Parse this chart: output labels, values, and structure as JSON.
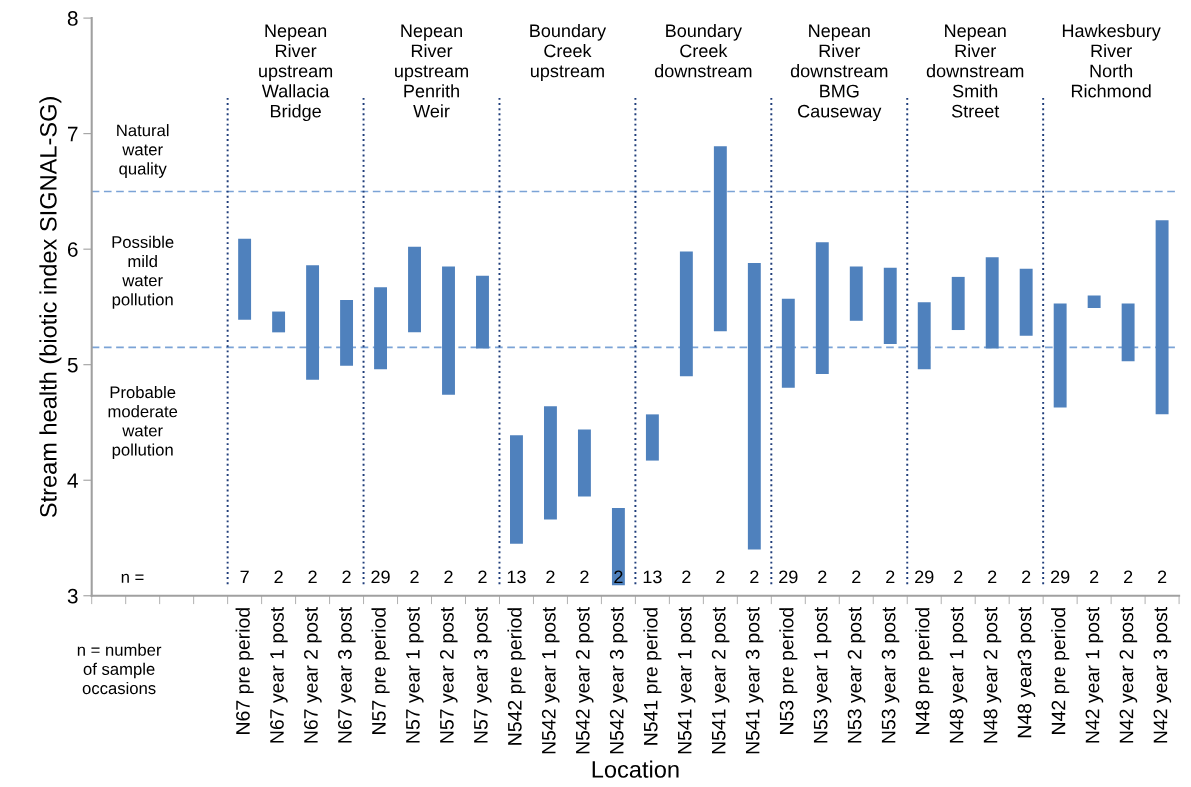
{
  "chart_data": {
    "type": "bar",
    "ylabel": "Stream health (biotic index SIGNAL-SG)",
    "xlabel": "Location",
    "categories": [
      null,
      null,
      null,
      null,
      "N67 pre period",
      "N67 year 1 post",
      "N67 year 2 post",
      "N67 year 3 post",
      "N57 pre period",
      "N57 year 1 post",
      "N57 year 2 post",
      "N57 year 3 post",
      "N542 pre period",
      "N542 year 1 post",
      "N542 year 2 post",
      "N542 year 3 post",
      "N541 pre period",
      "N541 year 1 post",
      "N541 year 2 post",
      "N541 year 3 post",
      "N53 pre period",
      "N53 year 1 post",
      "N53 year 2 post",
      "N53 year 3 post",
      "N48 pre period",
      "N48 year 1 post",
      "N48 year 2 post",
      "N48 year3 post",
      "N42 pre period",
      "N42 year 1 post",
      "N42 year 2 post",
      "N42 year 3 post"
    ],
    "base": [
      null,
      null,
      null,
      null,
      5.39,
      5.28,
      4.87,
      4.99,
      4.96,
      5.28,
      4.74,
      5.14,
      3.45,
      3.66,
      3.86,
      3.09,
      4.17,
      4.9,
      5.29,
      3.4,
      4.8,
      4.92,
      5.38,
      5.18,
      4.96,
      5.3,
      5.14,
      5.25,
      4.63,
      5.49,
      5.03,
      4.57
    ],
    "values": [
      null,
      null,
      null,
      null,
      0.7,
      0.18,
      0.99,
      0.57,
      0.71,
      0.74,
      1.11,
      0.63,
      0.94,
      0.98,
      0.58,
      0.67,
      0.4,
      1.08,
      1.6,
      2.48,
      0.77,
      1.14,
      0.47,
      0.66,
      0.58,
      0.46,
      0.79,
      0.58,
      0.9,
      0.11,
      0.5,
      1.68
    ],
    "color": "#4f81bd",
    "ylim": [
      3,
      8
    ],
    "yticks": [
      3,
      4,
      5,
      6,
      7,
      8
    ],
    "ref_lines": [
      {
        "axis": "y",
        "value": 6.5,
        "label": null,
        "color": "#7ba3d6",
        "line_style": "dashed"
      },
      {
        "axis": "y",
        "value": 5.15,
        "label": null,
        "color": "#7ba3d6",
        "line_style": "dashed"
      }
    ],
    "annotations": [
      "Natural\nwater\nquality",
      "Possible\nmild\nwater\npollution",
      "Probable\nmoderate\nwater\npollution",
      "n =",
      "n = number\nof sample\noccasions",
      "Nepean\nRiver\nupstream\nWallacia\nBridge",
      "Nepean\nRiver\nupstream\nPenrith\nWeir",
      "Boundary\nCreek\nupstream",
      "Boundary\nCreek\ndownstream",
      "Nepean\nRiver\ndownstream\nBMG\nCauseway",
      "Nepean\nRiver\ndownstream\nSmith\nStreet",
      "Hawkesbury\nRiver\nNorth\nRichmond",
      "7",
      "2",
      "2",
      "2",
      "29",
      "2",
      "2",
      "2",
      "13",
      "2",
      "2",
      "2",
      "13",
      "2",
      "2",
      "2",
      "29",
      "2",
      "2",
      "2",
      "29",
      "2",
      "2",
      "2",
      "29",
      "2",
      "2",
      "2"
    ]
  }
}
